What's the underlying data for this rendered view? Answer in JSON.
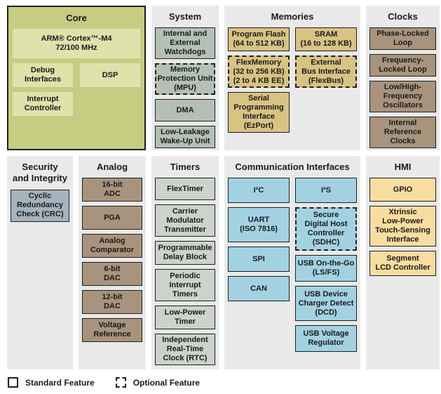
{
  "sections": {
    "core": {
      "title": "Core",
      "blocks": [
        {
          "label": "ARM® Cortex™-M4\n72/100 MHz"
        },
        {
          "label": "Debug\nInterfaces"
        },
        {
          "label": "DSP"
        },
        {
          "label": "Interrupt\nController"
        }
      ]
    },
    "system": {
      "title": "System",
      "blocks": [
        {
          "label": "Internal and\nExternal\nWatchdogs",
          "optional": false
        },
        {
          "label": "Memory\nProtection Unit\n(MPU)",
          "optional": true
        },
        {
          "label": "DMA",
          "optional": false
        },
        {
          "label": "Low-Leakage\nWake-Up Unit",
          "optional": false
        }
      ]
    },
    "memories": {
      "title": "Memories",
      "col1": [
        {
          "label": "Program Flash\n(64 to 512 KB)",
          "optional": false
        },
        {
          "label": "FlexMemory\n(32 to 256 KB)\n(2 to 4 KB EE)",
          "optional": true
        },
        {
          "label": "Serial\nProgramming\nInterface\n(EzPort)",
          "optional": false
        }
      ],
      "col2": [
        {
          "label": "SRAM\n(16 to 128 KB)",
          "optional": false
        },
        {
          "label": "External\nBus Interface\n(FlexBus)",
          "optional": true
        }
      ]
    },
    "clocks": {
      "title": "Clocks",
      "blocks": [
        {
          "label": "Phase-Locked\nLoop",
          "optional": false
        },
        {
          "label": "Frequency-\nLocked Loop",
          "optional": false
        },
        {
          "label": "Low/High-\nFrequency\nOscillators",
          "optional": false
        },
        {
          "label": "Internal\nReference\nClocks",
          "optional": false
        }
      ]
    },
    "security": {
      "title": "Security\nand Integrity",
      "blocks": [
        {
          "label": "Cyclic\nRedundancy\nCheck (CRC)",
          "optional": false
        }
      ]
    },
    "analog": {
      "title": "Analog",
      "blocks": [
        {
          "label": "16-bit\nADC",
          "optional": false
        },
        {
          "label": "PGA",
          "optional": false
        },
        {
          "label": "Analog\nComparator",
          "optional": false
        },
        {
          "label": "6-bit\nDAC",
          "optional": false
        },
        {
          "label": "12-bit\nDAC",
          "optional": false
        },
        {
          "label": "Voltage\nReference",
          "optional": false
        }
      ]
    },
    "timers": {
      "title": "Timers",
      "blocks": [
        {
          "label": "FlexTimer",
          "optional": false
        },
        {
          "label": "Carrier\nModulator\nTransmitter",
          "optional": false
        },
        {
          "label": "Programmable\nDelay Block",
          "optional": false
        },
        {
          "label": "Periodic\nInterrupt\nTimers",
          "optional": false
        },
        {
          "label": "Low-Power\nTimer",
          "optional": false
        },
        {
          "label": "Independent\nReal-Time\nClock (RTC)",
          "optional": false
        }
      ]
    },
    "comm": {
      "title": "Communication Interfaces",
      "col1": [
        {
          "label": "I²C",
          "optional": false
        },
        {
          "label": "UART\n(ISO 7816)",
          "optional": false
        },
        {
          "label": "SPI",
          "optional": false
        },
        {
          "label": "CAN",
          "optional": false
        }
      ],
      "col2": [
        {
          "label": "I²S",
          "optional": false
        },
        {
          "label": "Secure\nDigital Host\nController\n(SDHC)",
          "optional": true
        },
        {
          "label": "USB On-the-Go\n(LS/FS)",
          "optional": false
        },
        {
          "label": "USB Device\nCharger Detect\n(DCD)",
          "optional": false
        },
        {
          "label": "USB Voltage\nRegulator",
          "optional": false
        }
      ]
    },
    "hmi": {
      "title": "HMI",
      "blocks": [
        {
          "label": "GPIO",
          "optional": false
        },
        {
          "label": "Xtrinsic\nLow-Power\nTouch-Sensing\nInterface",
          "optional": false
        },
        {
          "label": "Segment\nLCD Controller",
          "optional": false
        }
      ]
    }
  },
  "legend": {
    "standard_label": "Standard Feature",
    "optional_label": "Optional Feature"
  },
  "colors": {
    "panel-bg": "#e8e9e8",
    "core-bg": "#c6cc81",
    "core-inner": "#dfe3ab",
    "system-fill": "#b4c0b7",
    "memory-fill": "#d8c383",
    "clock-fill": "#a8947d",
    "security-fill": "#a4b3bd",
    "analog-fill": "#a8947d",
    "timer-fill": "#cbd3ca",
    "comm-fill": "#a2d2e2",
    "hmi-fill": "#f9dda0",
    "border": "#1e1e1e",
    "text": "#1a1a1a"
  }
}
